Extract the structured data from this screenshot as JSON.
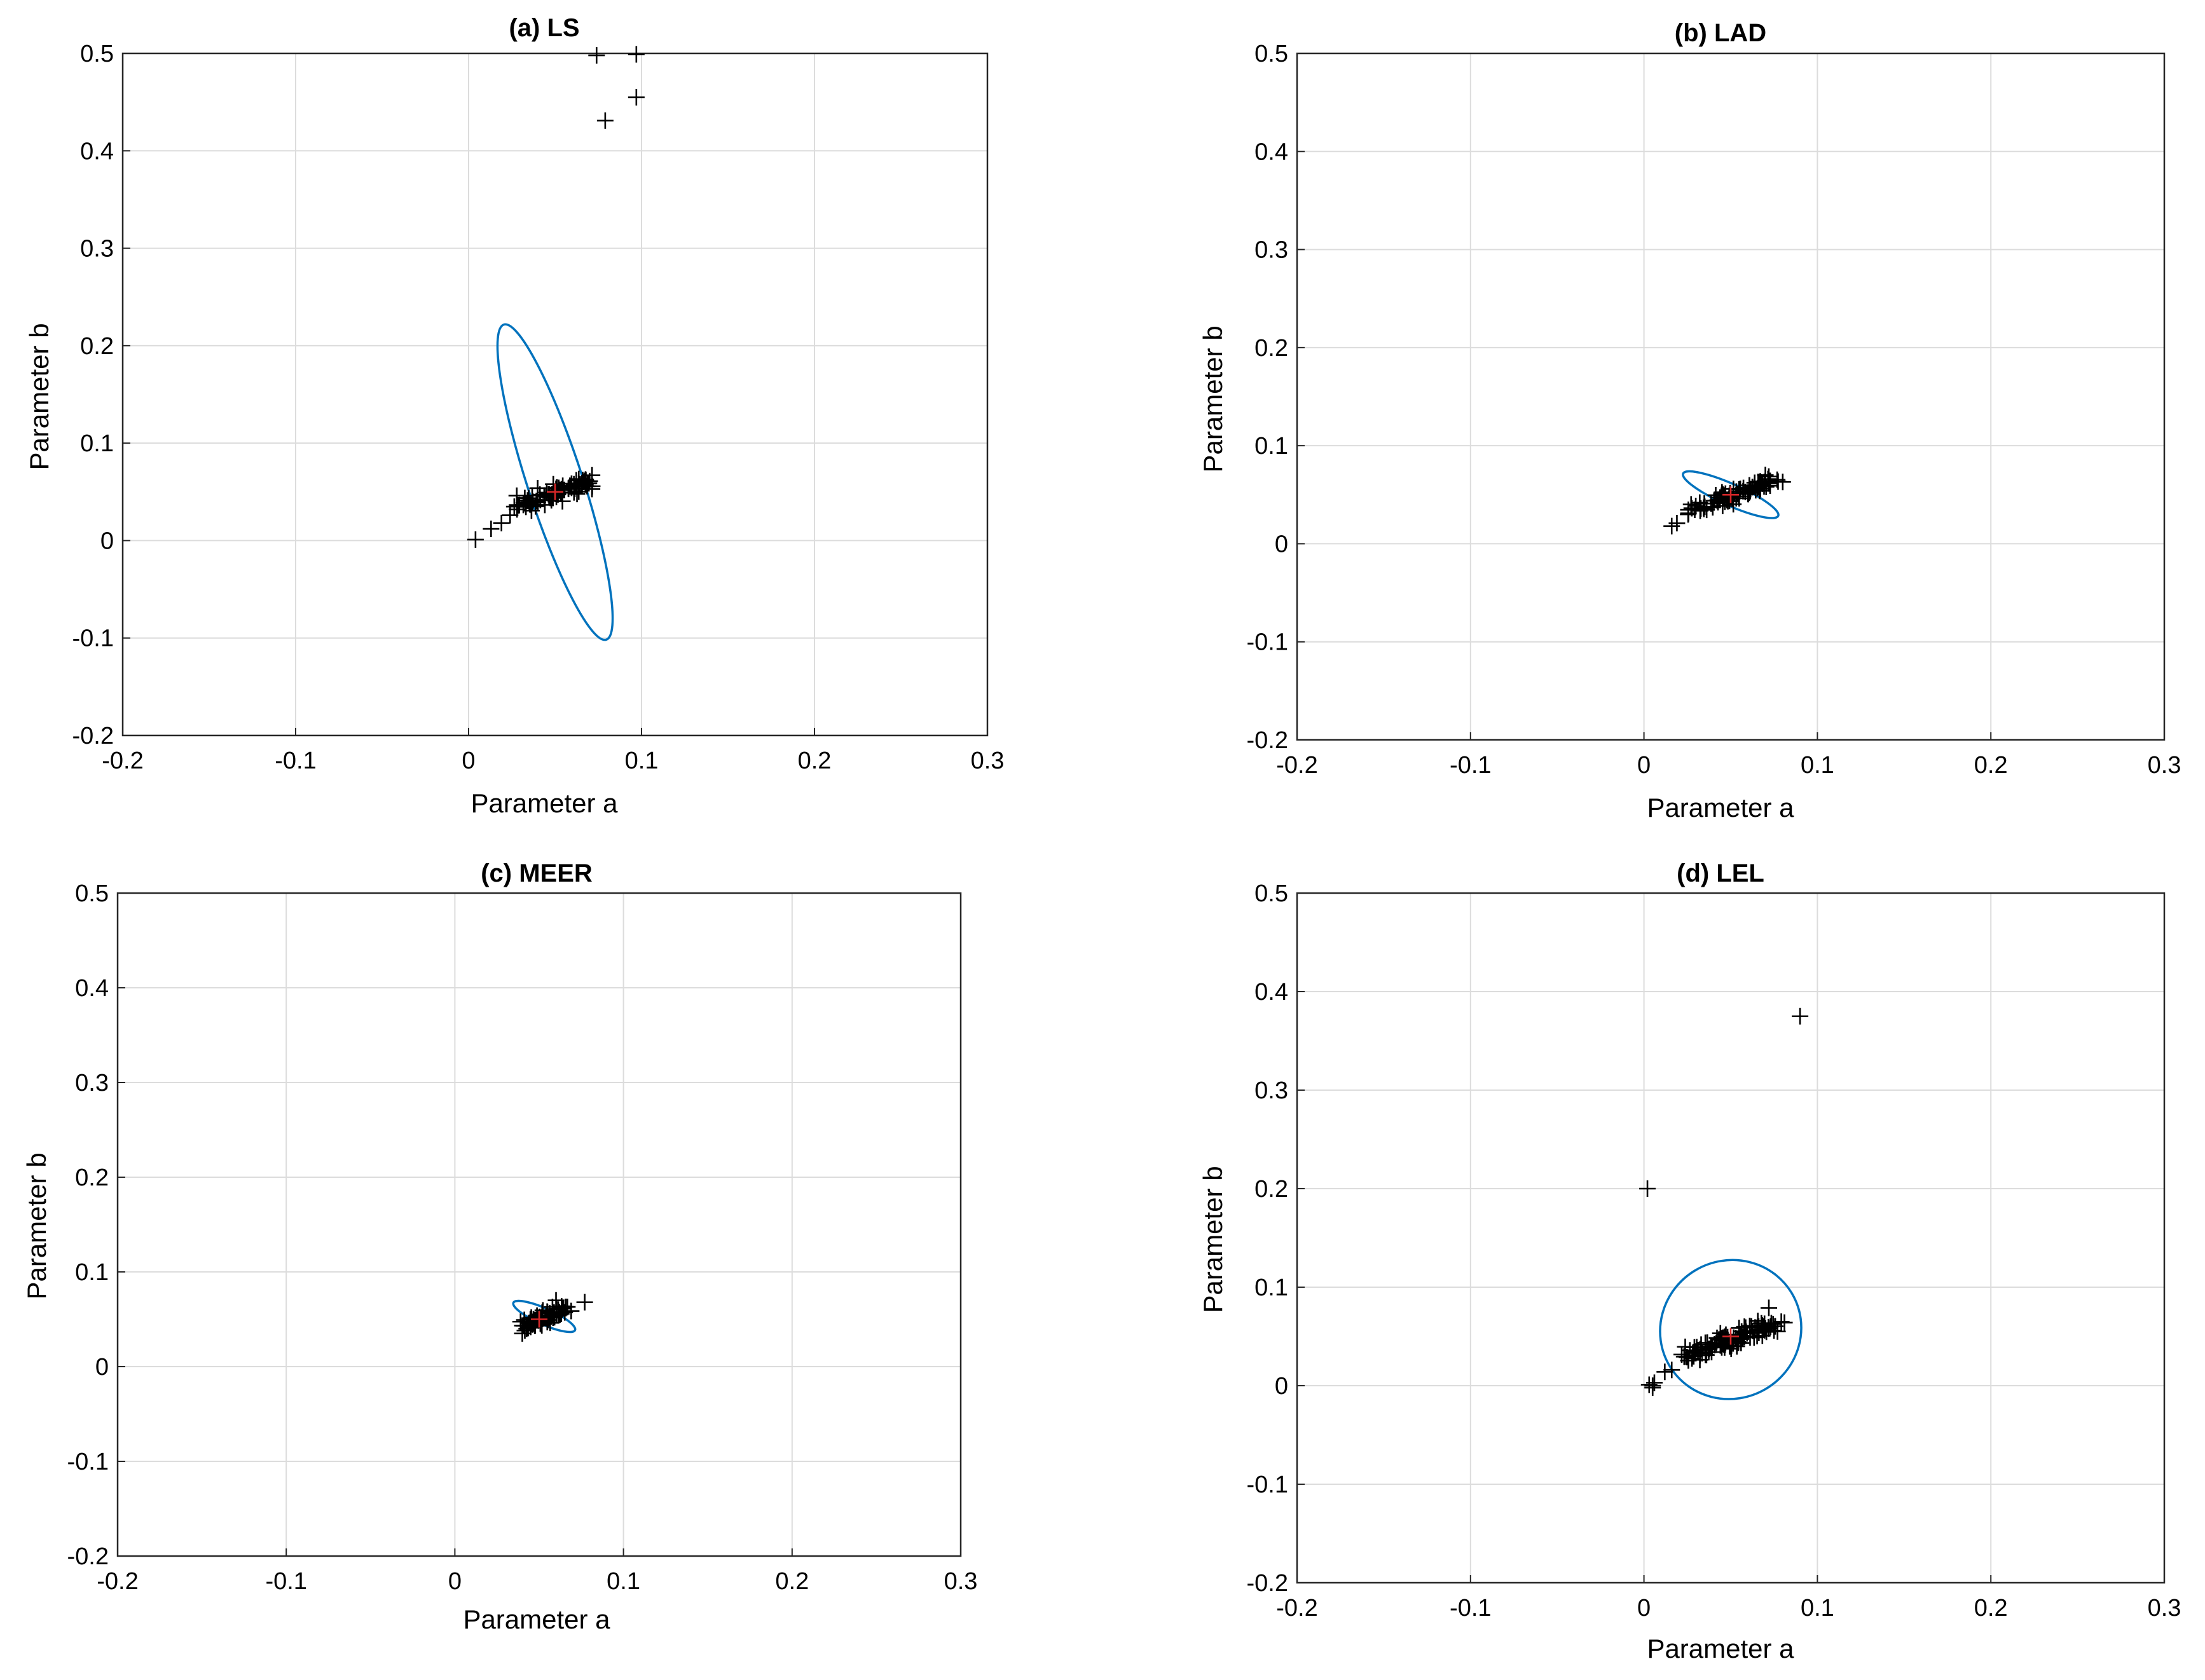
{
  "figure": {
    "background": "#ffffff",
    "grid_color": "#dcdcdc",
    "ellipse_color": "#0072BD",
    "marker_color": "#000000",
    "true_value_color": "#d62728"
  },
  "chart_data": [
    {
      "type": "scatter",
      "title": "(a) LS",
      "xlabel": "Parameter a",
      "ylabel": "Parameter b",
      "xlim": [
        -0.2,
        0.3
      ],
      "ylim": [
        -0.2,
        0.5
      ],
      "xticks": [
        -0.2,
        -0.1,
        0,
        0.1,
        0.2,
        0.3
      ],
      "xtick_labels": [
        "-0.2",
        "-0.1",
        "0",
        "0.1",
        "0.2",
        "0.3"
      ],
      "yticks": [
        -0.2,
        -0.1,
        0,
        0.1,
        0.2,
        0.3,
        0.4,
        0.5
      ],
      "ytick_labels": [
        "-0.2",
        "-0.1",
        "0",
        "0.1",
        "0.2",
        "0.3",
        "0.4",
        "0.5"
      ],
      "grid": true,
      "true_value": [
        0.05,
        0.05
      ],
      "ellipse": {
        "center": [
          0.05,
          0.06
        ],
        "semi_x": 0.016,
        "semi_y": 0.17,
        "rotation_deg": -18
      },
      "cluster": {
        "from": [
          0.03,
          0.035
        ],
        "to": [
          0.07,
          0.062
        ],
        "spread": 0.004,
        "count": 90
      },
      "points": [
        [
          0.074,
          0.498
        ],
        [
          0.097,
          0.499
        ],
        [
          0.097,
          0.455
        ],
        [
          0.079,
          0.431
        ],
        [
          0.004,
          0.001
        ],
        [
          0.013,
          0.012
        ],
        [
          0.019,
          0.018
        ],
        [
          0.024,
          0.026
        ],
        [
          0.028,
          0.032
        ],
        [
          0.07,
          0.061
        ]
      ]
    },
    {
      "type": "scatter",
      "title": "(b) LAD",
      "xlabel": "Parameter a",
      "ylabel": "Parameter b",
      "xlim": [
        -0.2,
        0.3
      ],
      "ylim": [
        -0.2,
        0.5
      ],
      "xticks": [
        -0.2,
        -0.1,
        0,
        0.1,
        0.2,
        0.3
      ],
      "xtick_labels": [
        "-0.2",
        "-0.1",
        "0",
        "0.1",
        "0.2",
        "0.3"
      ],
      "yticks": [
        -0.2,
        -0.1,
        0,
        0.1,
        0.2,
        0.3,
        0.4,
        0.5
      ],
      "ytick_labels": [
        "-0.2",
        "-0.1",
        "0",
        "0.1",
        "0.2",
        "0.3",
        "0.4",
        "0.5"
      ],
      "grid": true,
      "true_value": [
        0.05,
        0.05
      ],
      "ellipse": {
        "center": [
          0.05,
          0.05
        ],
        "semi_x": 0.03,
        "semi_y": 0.011,
        "rotation_deg": 24
      },
      "cluster": {
        "from": [
          0.027,
          0.033
        ],
        "to": [
          0.075,
          0.065
        ],
        "spread": 0.0035,
        "count": 90
      },
      "points": [
        [
          0.016,
          0.018
        ],
        [
          0.019,
          0.021
        ],
        [
          0.08,
          0.063
        ],
        [
          0.07,
          0.07
        ]
      ]
    },
    {
      "type": "scatter",
      "title": "(c) MEER",
      "xlabel": "Parameter a",
      "ylabel": "Parameter b",
      "xlim": [
        -0.2,
        0.3
      ],
      "ylim": [
        -0.2,
        0.5
      ],
      "xticks": [
        -0.2,
        -0.1,
        0,
        0.1,
        0.2,
        0.3
      ],
      "xtick_labels": [
        "-0.2",
        "-0.1",
        "0",
        "0.1",
        "0.2",
        "0.3"
      ],
      "yticks": [
        -0.2,
        -0.1,
        0,
        0.1,
        0.2,
        0.3,
        0.4,
        0.5
      ],
      "ytick_labels": [
        "-0.2",
        "-0.1",
        "0",
        "0.1",
        "0.2",
        "0.3",
        "0.4",
        "0.5"
      ],
      "grid": true,
      "true_value": [
        0.05,
        0.05
      ],
      "ellipse": {
        "center": [
          0.053,
          0.053
        ],
        "semi_x": 0.02,
        "semi_y": 0.0085,
        "rotation_deg": 24
      },
      "cluster": {
        "from": [
          0.041,
          0.043
        ],
        "to": [
          0.067,
          0.062
        ],
        "spread": 0.003,
        "count": 80
      },
      "points": [
        [
          0.077,
          0.068
        ],
        [
          0.06,
          0.07
        ],
        [
          0.04,
          0.035
        ],
        [
          0.045,
          0.05
        ]
      ]
    },
    {
      "type": "scatter",
      "title": "(d) LEL",
      "xlabel": "Parameter a",
      "ylabel": "Parameter b",
      "xlim": [
        -0.2,
        0.3
      ],
      "ylim": [
        -0.2,
        0.5
      ],
      "xticks": [
        -0.2,
        -0.1,
        0,
        0.1,
        0.2,
        0.3
      ],
      "xtick_labels": [
        "-0.2",
        "-0.1",
        "0",
        "0.1",
        "0.2",
        "0.3"
      ],
      "yticks": [
        -0.2,
        -0.1,
        0,
        0.1,
        0.2,
        0.3,
        0.4,
        0.5
      ],
      "ytick_labels": [
        "-0.2",
        "-0.1",
        "0",
        "0.1",
        "0.2",
        "0.3",
        "0.4",
        "0.5"
      ],
      "grid": true,
      "true_value": [
        0.05,
        0.05
      ],
      "ellipse": {
        "center": [
          0.05,
          0.057
        ],
        "semi_x": 0.041,
        "semi_y": 0.07,
        "rotation_deg": -30
      },
      "cluster": {
        "from": [
          0.025,
          0.03
        ],
        "to": [
          0.075,
          0.062
        ],
        "spread": 0.0045,
        "count": 110
      },
      "points": [
        [
          0.09,
          0.375
        ],
        [
          0.002,
          0.2
        ],
        [
          0.005,
          0.0
        ],
        [
          0.006,
          0.003
        ],
        [
          0.005,
          -0.002
        ],
        [
          0.003,
          0.001
        ],
        [
          0.012,
          0.014
        ],
        [
          0.016,
          0.016
        ],
        [
          0.072,
          0.079
        ],
        [
          0.081,
          0.064
        ],
        [
          0.077,
          0.055
        ],
        [
          0.07,
          0.058
        ],
        [
          0.073,
          0.06
        ],
        [
          0.066,
          0.06
        ]
      ]
    }
  ]
}
